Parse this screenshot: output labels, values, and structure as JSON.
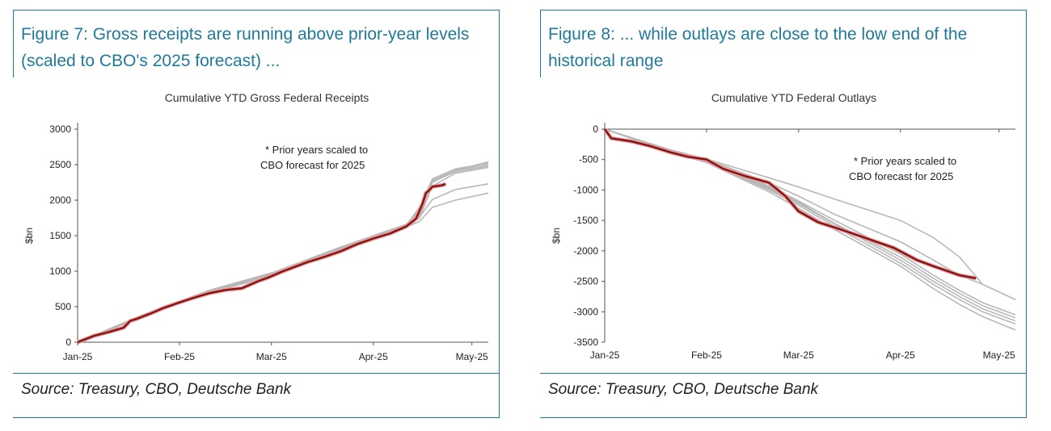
{
  "figures": [
    {
      "heading": "Figure 7: Gross receipts are running above prior-year levels (scaled to CBO's 2025 forecast) ...",
      "source": "Source: Treasury, CBO, Deutsche Bank",
      "chart_data": {
        "type": "line",
        "title": "Cumulative YTD Gross Federal Receipts",
        "ylabel": "$bn",
        "xlabel": "",
        "x_ticks": [
          "Jan-25",
          "Feb-25",
          "Mar-25",
          "Apr-25",
          "May-25"
        ],
        "y_ticks": [
          0,
          500,
          1000,
          1500,
          2000,
          2500,
          3000
        ],
        "ylim": [
          0,
          3000
        ],
        "xlim_days": [
          0,
          125
        ],
        "annotation": [
          "* Prior years scaled to",
          "CBO forecast for 2025"
        ],
        "colors": {
          "current": "#8b1010",
          "current_halo": "#e0a0a0",
          "prior": "#b8b8b8"
        },
        "series": [
          {
            "role": "current",
            "x": [
              0,
              5,
              10,
              14,
              16,
              18,
              22,
              26,
              31,
              35,
              40,
              45,
              50,
              55,
              58,
              62,
              66,
              70,
              75,
              80,
              85,
              90,
              95,
              100,
              103,
              105,
              106,
              107,
              108,
              111,
              112
            ],
            "y": [
              0,
              90,
              150,
              205,
              300,
              330,
              400,
              480,
              560,
              620,
              690,
              735,
              760,
              860,
              910,
              990,
              1060,
              1130,
              1200,
              1280,
              1380,
              1460,
              1530,
              1630,
              1740,
              1950,
              2100,
              2140,
              2190,
              2210,
              2230
            ]
          },
          {
            "role": "prior",
            "x": [
              0,
              20,
              40,
              60,
              80,
              100,
              104,
              108,
              115,
              125
            ],
            "y": [
              0,
              370,
              710,
              950,
              1300,
              1620,
              1800,
              2250,
              2420,
              2540
            ]
          },
          {
            "role": "prior",
            "x": [
              0,
              20,
              40,
              60,
              80,
              100,
              104,
              108,
              115,
              125
            ],
            "y": [
              0,
              380,
              720,
              970,
              1320,
              1640,
              1900,
              2300,
              2440,
              2520
            ]
          },
          {
            "role": "prior",
            "x": [
              0,
              20,
              40,
              60,
              80,
              100,
              104,
              108,
              115,
              125
            ],
            "y": [
              0,
              360,
              700,
              940,
              1290,
              1610,
              1750,
              2200,
              2380,
              2460
            ]
          },
          {
            "role": "prior",
            "x": [
              0,
              20,
              40,
              60,
              80,
              100,
              104,
              108,
              115,
              125
            ],
            "y": [
              0,
              390,
              730,
              990,
              1340,
              1660,
              1850,
              2280,
              2420,
              2500
            ]
          },
          {
            "role": "prior",
            "x": [
              0,
              20,
              40,
              60,
              80,
              100,
              104,
              108,
              115,
              125
            ],
            "y": [
              0,
              370,
              715,
              960,
              1310,
              1630,
              1820,
              2260,
              2400,
              2480
            ]
          },
          {
            "role": "prior",
            "x": [
              0,
              20,
              40,
              60,
              80,
              100,
              104,
              108,
              115,
              125
            ],
            "y": [
              0,
              375,
              725,
              975,
              1330,
              1650,
              1760,
              2010,
              2150,
              2230
            ]
          },
          {
            "role": "prior",
            "x": [
              0,
              20,
              40,
              60,
              80,
              100,
              104,
              108,
              115,
              125
            ],
            "y": [
              0,
              365,
              705,
              945,
              1300,
              1620,
              1700,
              1900,
              2000,
              2100
            ]
          }
        ]
      }
    },
    {
      "heading": "Figure 8: ... while outlays are close to the low end of the historical range",
      "source": "Source: Treasury, CBO, Deutsche Bank",
      "chart_data": {
        "type": "line",
        "title": "Cumulative YTD Federal Outlays",
        "ylabel": "$bn",
        "xlabel": "",
        "x_ticks": [
          "Jan-25",
          "Feb-25",
          "Mar-25",
          "Apr-25",
          "May-25"
        ],
        "y_ticks": [
          0,
          -500,
          -1000,
          -1500,
          -2000,
          -2500,
          -3000,
          -3500
        ],
        "ylim": [
          -3500,
          0
        ],
        "xlim_days": [
          0,
          125
        ],
        "annotation": [
          "* Prior years scaled to",
          "CBO forecast for 2025"
        ],
        "colors": {
          "current": "#8b1010",
          "current_halo": "#e0a0a0",
          "prior": "#b8b8b8"
        },
        "series": [
          {
            "role": "current",
            "x": [
              0,
              2,
              8,
              14,
              20,
              25,
              31,
              36,
              42,
              50,
              55,
              59,
              65,
              72,
              80,
              88,
              95,
              100,
              108,
              113
            ],
            "y": [
              0,
              -150,
              -200,
              -280,
              -380,
              -450,
              -500,
              -650,
              -760,
              -880,
              -1100,
              -1350,
              -1530,
              -1650,
              -1800,
              -1950,
              -2150,
              -2250,
              -2400,
              -2450
            ]
          },
          {
            "role": "prior",
            "x": [
              0,
              20,
              31,
              50,
              59,
              70,
              90,
              100,
              108,
              115,
              125
            ],
            "y": [
              0,
              -350,
              -500,
              -880,
              -1100,
              -1400,
              -1850,
              -2150,
              -2400,
              -2550,
              -2800
            ]
          },
          {
            "role": "prior",
            "x": [
              0,
              20,
              31,
              50,
              59,
              70,
              90,
              100,
              108,
              115,
              125
            ],
            "y": [
              0,
              -340,
              -490,
              -800,
              -950,
              -1150,
              -1500,
              -1780,
              -2100,
              -2550,
              -2800
            ]
          },
          {
            "role": "prior",
            "x": [
              0,
              20,
              31,
              50,
              59,
              70,
              90,
              100,
              108,
              115,
              125
            ],
            "y": [
              0,
              -360,
              -520,
              -960,
              -1200,
              -1550,
              -2100,
              -2450,
              -2700,
              -2900,
              -3100
            ]
          },
          {
            "role": "prior",
            "x": [
              0,
              20,
              31,
              50,
              59,
              70,
              90,
              100,
              108,
              115,
              125
            ],
            "y": [
              0,
              -370,
              -540,
              -1000,
              -1250,
              -1600,
              -2200,
              -2550,
              -2800,
              -3000,
              -3200
            ]
          },
          {
            "role": "prior",
            "x": [
              0,
              20,
              31,
              50,
              59,
              70,
              90,
              100,
              108,
              115,
              125
            ],
            "y": [
              0,
              -355,
              -510,
              -940,
              -1180,
              -1500,
              -2050,
              -2400,
              -2650,
              -2850,
              -3050
            ]
          },
          {
            "role": "prior",
            "x": [
              0,
              20,
              31,
              50,
              59,
              70,
              90,
              100,
              108,
              115,
              125
            ],
            "y": [
              0,
              -380,
              -550,
              -1030,
              -1300,
              -1650,
              -2250,
              -2620,
              -2880,
              -3080,
              -3300
            ]
          },
          {
            "role": "prior",
            "x": [
              0,
              20,
              31,
              50,
              59,
              70,
              90,
              100,
              108,
              115,
              125
            ],
            "y": [
              0,
              -365,
              -530,
              -980,
              -1220,
              -1560,
              -2150,
              -2500,
              -2750,
              -2950,
              -3150
            ]
          }
        ]
      }
    }
  ]
}
